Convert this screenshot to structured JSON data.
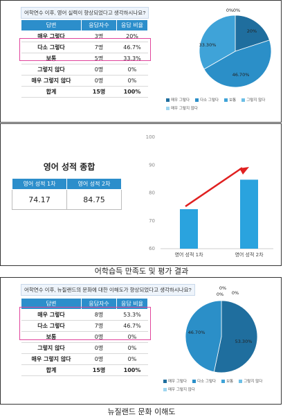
{
  "panel1": {
    "question": "어학연수 이후, 영어 실력이 향상되었다고 생각하시나요?",
    "headers": [
      "답변",
      "응답자수",
      "응답 비율"
    ],
    "rows": [
      {
        "answer": "매우 그렇다",
        "count": "3명",
        "pct": "20%"
      },
      {
        "answer": "다소 그렇다",
        "count": "7명",
        "pct": "46.7%"
      },
      {
        "answer": "보통",
        "count": "5명",
        "pct": "33.3%"
      },
      {
        "answer": "그렇지 않다",
        "count": "0명",
        "pct": "0%"
      },
      {
        "answer": "매우 그렇지 않다",
        "count": "0명",
        "pct": "0%"
      }
    ],
    "total": {
      "answer": "합계",
      "count": "15명",
      "pct": "100%"
    }
  },
  "panel2": {
    "title": "영어 성적 종합",
    "headers": [
      "영어 성적 1차",
      "영어 성적 2차"
    ],
    "values": [
      "74.17",
      "84.75"
    ]
  },
  "caption1": "어학습득 만족도 및 평가 결과",
  "panel3": {
    "question": "어학연수 이후, 뉴질랜드의 문화에 대한 이해도가 향상되었다고 생각하시나요?",
    "headers": [
      "답변",
      "응답자수",
      "응답 비율"
    ],
    "rows": [
      {
        "answer": "매우 그렇다",
        "count": "8명",
        "pct": "53.3%"
      },
      {
        "answer": "다소 그렇다",
        "count": "7명",
        "pct": "46.7%"
      },
      {
        "answer": "보통",
        "count": "0명",
        "pct": "0%"
      },
      {
        "answer": "그렇지 않다",
        "count": "0명",
        "pct": "0%"
      },
      {
        "answer": "매우 그렇지 않다",
        "count": "0명",
        "pct": "0%"
      }
    ],
    "total": {
      "answer": "합계",
      "count": "15명",
      "pct": "100%"
    }
  },
  "caption2": "뉴질랜드 문화 이해도",
  "colors": {
    "c1": "#1f6e9e",
    "c2": "#2b8fc8",
    "c3": "#3fa3d8",
    "c4": "#6cbfe6",
    "c5": "#9fd6f0",
    "bar": "#2aa3de",
    "arrow": "#e02020",
    "header": "#2c8ecb"
  },
  "chart_data": [
    {
      "type": "pie",
      "labels": [
        "매우 그렇다",
        "다소 그렇다",
        "보통",
        "그렇지 않다",
        "매우 그렇지 않다"
      ],
      "values": [
        20,
        46.7,
        33.3,
        0,
        0
      ],
      "data_labels": [
        "20%",
        "46.70%",
        "33.30%",
        "0%",
        "0%"
      ],
      "legend": "bottom"
    },
    {
      "type": "bar",
      "categories": [
        "영어 성적 1차",
        "영어 성적 2차"
      ],
      "values": [
        74.17,
        84.75
      ],
      "ylim": [
        60,
        100
      ],
      "yticks": [
        "60",
        "70",
        "80",
        "90",
        "100"
      ],
      "grid": false,
      "annotation": "rising arrow"
    },
    {
      "type": "pie",
      "labels": [
        "매우 그렇다",
        "다소 그렇다",
        "보통",
        "그렇지 않다",
        "매우 그렇지 않다"
      ],
      "values": [
        53.3,
        46.7,
        0,
        0,
        0
      ],
      "data_labels": [
        "53.30%",
        "46.70%",
        "0%",
        "0%",
        "0%"
      ],
      "legend": "bottom"
    }
  ]
}
